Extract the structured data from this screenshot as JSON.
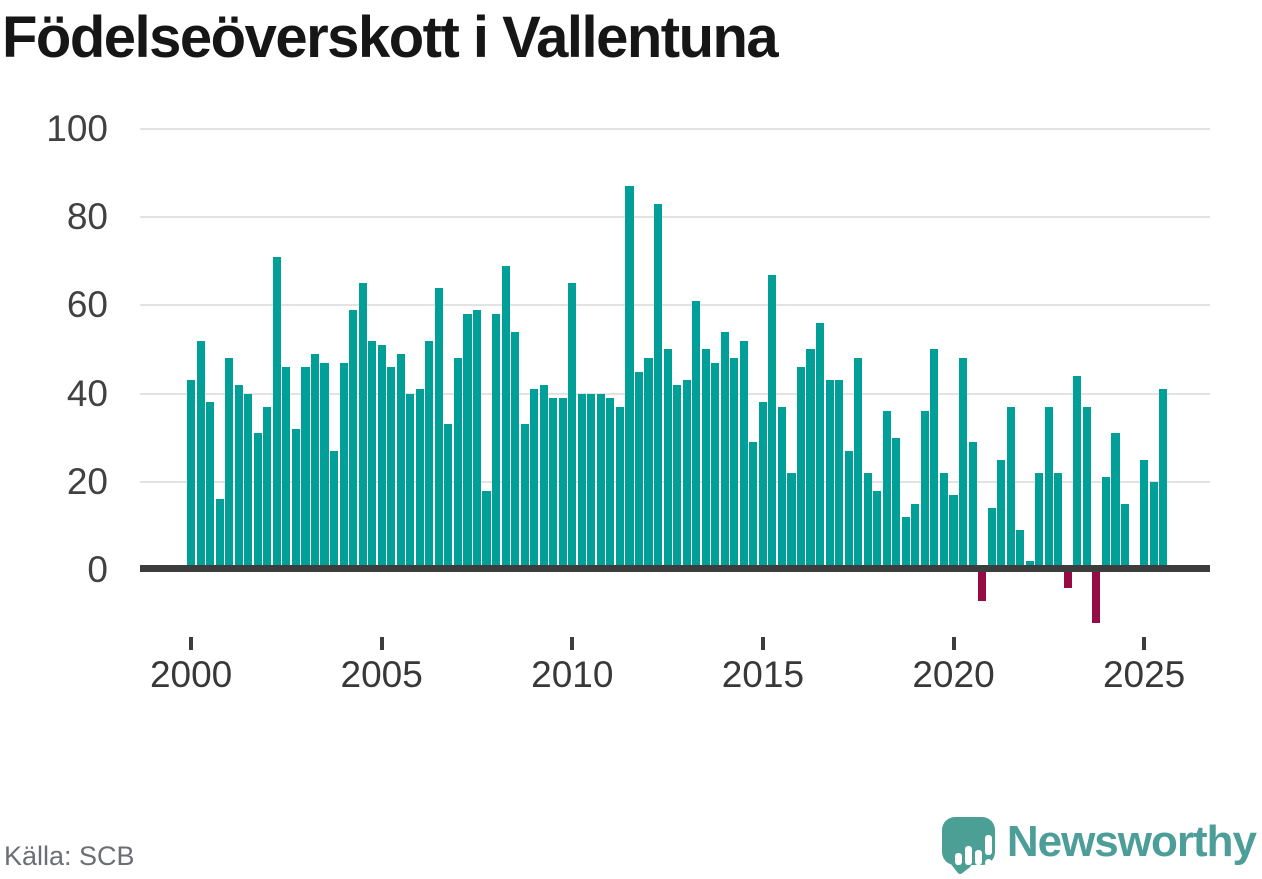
{
  "title": "Födelseöverskott i Vallentuna",
  "source": "Källa: SCB",
  "branding": {
    "name": "Newsworthy"
  },
  "colors": {
    "bar_positive": "#00a099",
    "bar_negative": "#940b45",
    "axis_line": "#3d3d3d",
    "gridline": "#e3e3e3",
    "title_text": "#161616",
    "tick_text": "#414141",
    "source_text": "#6b6e74",
    "brand_teal": "#4d9e99"
  },
  "chart_data": {
    "type": "bar",
    "title": "Födelseöverskott i Vallentuna",
    "frequency": "quarterly",
    "x_start": "2000-Q1",
    "x_end": "2025-Q3",
    "values": [
      43,
      52,
      38,
      16,
      48,
      42,
      40,
      31,
      37,
      71,
      46,
      32,
      46,
      49,
      47,
      27,
      47,
      59,
      65,
      52,
      51,
      46,
      49,
      40,
      41,
      52,
      64,
      33,
      48,
      58,
      59,
      18,
      58,
      69,
      54,
      33,
      41,
      42,
      39,
      39,
      65,
      40,
      40,
      40,
      39,
      37,
      87,
      45,
      48,
      83,
      50,
      42,
      43,
      61,
      50,
      47,
      54,
      48,
      52,
      29,
      38,
      67,
      37,
      22,
      46,
      50,
      56,
      43,
      43,
      27,
      48,
      22,
      18,
      36,
      30,
      12,
      15,
      36,
      50,
      22,
      17,
      48,
      29,
      -7,
      14,
      25,
      37,
      9,
      2,
      22,
      37,
      22,
      -4,
      44,
      37,
      -12,
      21,
      31,
      15,
      1,
      25,
      20,
      41
    ],
    "ytick_labels": [
      "0",
      "20",
      "40",
      "60",
      "80",
      "100"
    ],
    "yticks": [
      0,
      20,
      40,
      60,
      80,
      100
    ],
    "xticks": [
      {
        "label": "2000",
        "bar_index": 0
      },
      {
        "label": "2005",
        "bar_index": 20
      },
      {
        "label": "2010",
        "bar_index": 40
      },
      {
        "label": "2015",
        "bar_index": 60
      },
      {
        "label": "2020",
        "bar_index": 80
      },
      {
        "label": "2025",
        "bar_index": 100
      }
    ],
    "ylim": [
      -15,
      100
    ],
    "grid": true,
    "legend": false,
    "xlabel": "",
    "ylabel": ""
  }
}
